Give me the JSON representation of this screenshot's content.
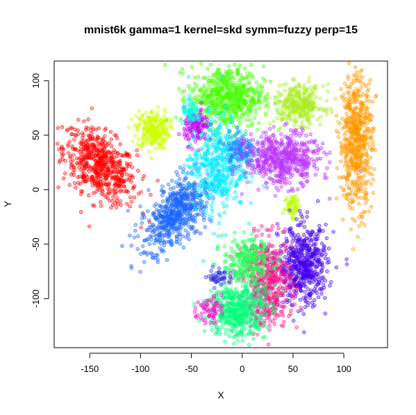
{
  "chart_data": {
    "type": "scatter",
    "title": "mnist6k gamma=1 kernel=skd symm=fuzzy perp=15",
    "xlabel": "X",
    "ylabel": "Y",
    "xlim": [
      -185,
      143
    ],
    "ylim": [
      -145,
      118
    ],
    "x_ticks": [
      -150,
      -100,
      -50,
      0,
      50,
      100
    ],
    "y_ticks": [
      -100,
      -50,
      0,
      50,
      100
    ],
    "grid": false,
    "legend": "none",
    "clusters": [
      {
        "color": "#ff0000",
        "center": [
          -140,
          22
        ],
        "spread": [
          18,
          15
        ],
        "count": 600,
        "shape": "bean"
      },
      {
        "color": "#ccff00",
        "center": [
          -88,
          55
        ],
        "spread": [
          8,
          9
        ],
        "count": 250
      },
      {
        "color": "#1a66ff",
        "center": [
          -65,
          -22
        ],
        "spread": [
          13,
          17
        ],
        "count": 600,
        "shape": "diag"
      },
      {
        "color": "#44ff00",
        "center": [
          -15,
          85
        ],
        "spread": [
          18,
          14
        ],
        "count": 600
      },
      {
        "color": "#00eeff",
        "center": [
          -25,
          25
        ],
        "spread": [
          14,
          22
        ],
        "count": 500
      },
      {
        "color": "#2288ff",
        "center": [
          -2,
          37
        ],
        "spread": [
          7,
          8
        ],
        "count": 140
      },
      {
        "color": "#cc00ff",
        "center": [
          -45,
          58
        ],
        "spread": [
          6,
          8
        ],
        "count": 120
      },
      {
        "color": "#00ffdd",
        "center": [
          -50,
          70
        ],
        "spread": [
          5,
          5
        ],
        "count": 60
      },
      {
        "color": "#aaee22",
        "center": [
          56,
          78
        ],
        "spread": [
          12,
          9
        ],
        "count": 300
      },
      {
        "color": "#bb33ff",
        "center": [
          40,
          28
        ],
        "spread": [
          18,
          12
        ],
        "count": 550
      },
      {
        "color": "#ff9900",
        "center": [
          112,
          45
        ],
        "spread": [
          8,
          30
        ],
        "count": 600,
        "shape": "vert"
      },
      {
        "color": "#bbff00",
        "center": [
          50,
          -15
        ],
        "spread": [
          4,
          6
        ],
        "count": 60
      },
      {
        "color": "#4400ee",
        "center": [
          60,
          -70
        ],
        "spread": [
          12,
          18
        ],
        "count": 550
      },
      {
        "color": "#ff1188",
        "center": [
          25,
          -85
        ],
        "spread": [
          12,
          20
        ],
        "count": 500
      },
      {
        "color": "#00ff77",
        "center": [
          -5,
          -110
        ],
        "spread": [
          14,
          14
        ],
        "count": 500
      },
      {
        "color": "#22ff55",
        "center": [
          5,
          -65
        ],
        "spread": [
          12,
          10
        ],
        "count": 250
      },
      {
        "color": "#ff00cc",
        "center": [
          -33,
          -110
        ],
        "spread": [
          6,
          6
        ],
        "count": 60
      },
      {
        "color": "#3333dd",
        "center": [
          -22,
          -80
        ],
        "spread": [
          6,
          4
        ],
        "count": 50
      }
    ]
  }
}
